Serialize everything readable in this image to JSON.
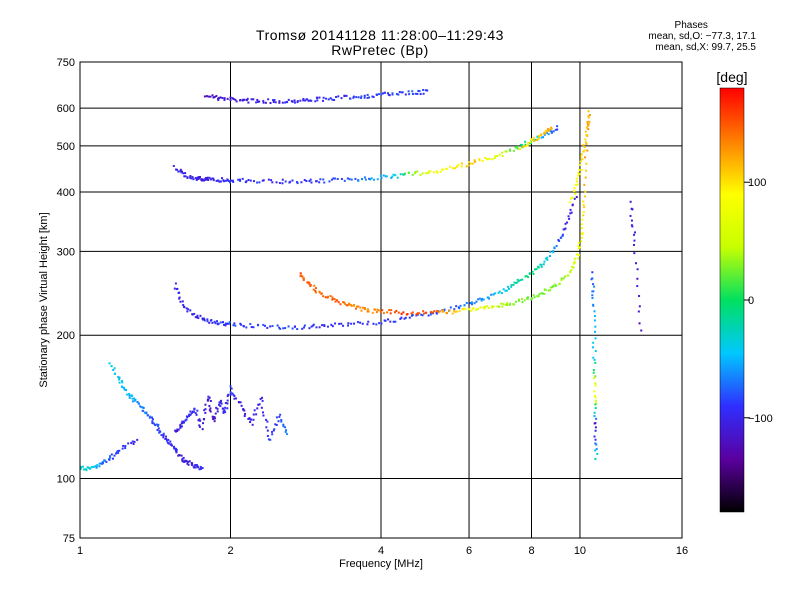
{
  "header": {
    "title_line1": "Tromsø 20141128 11:28:00–11:29:43",
    "title_line2": "RwPretec (Bp)"
  },
  "stats": {
    "heading": "Phases",
    "line_o": "mean, sd,O: −77.3, 17.1",
    "line_x": "mean, sd,X:  99.7, 25.5"
  },
  "colorbar": {
    "label": "[deg]",
    "ticks": [
      "100",
      "0",
      "−100"
    ],
    "tick_values": [
      100,
      0,
      -100
    ],
    "range": [
      -180,
      180
    ],
    "colors": [
      "#000000",
      "#5a00a0",
      "#2f2fff",
      "#00c8ff",
      "#00e060",
      "#c8ff00",
      "#ffff00",
      "#ff8000",
      "#ff0000"
    ]
  },
  "chart_data": {
    "type": "scatter",
    "xlabel": "Frequency [MHz]",
    "ylabel": "Stationary phase Virtual Height [km]",
    "x_scale": "log",
    "y_scale": "log",
    "xlim": [
      1,
      16
    ],
    "ylim": [
      75,
      750
    ],
    "x_ticks": [
      1,
      2,
      4,
      6,
      8,
      10,
      16
    ],
    "x_tick_labels": [
      "1",
      "2",
      "4",
      "6",
      "8",
      "10",
      "16"
    ],
    "y_ticks": [
      75,
      100,
      200,
      300,
      400,
      500,
      600,
      750
    ],
    "y_tick_labels": [
      "75",
      "100",
      "200",
      "300",
      "400",
      "500",
      "600",
      "750"
    ],
    "grid": true,
    "color_value": "phase (deg)",
    "series": [
      {
        "x": [
          1.79,
          1.9,
          2.05,
          2.2,
          2.4,
          2.6,
          2.8,
          3.0,
          3.3,
          3.6,
          3.9,
          4.2,
          4.6,
          4.95
        ],
        "y": [
          640,
          628,
          625,
          622,
          620,
          621,
          623,
          626,
          630,
          634,
          638,
          642,
          646,
          650
        ],
        "phase": [
          -120,
          -115,
          -110,
          -105,
          -100,
          -100,
          -98,
          -95,
          -92,
          -90,
          -88,
          -86,
          -85,
          -84
        ]
      },
      {
        "x": [
          1.55,
          1.62,
          1.7,
          1.75,
          1.8,
          1.9,
          2.0,
          2.2,
          2.5,
          2.8,
          3.1,
          3.5,
          3.9,
          4.3,
          4.7,
          5.2,
          5.7,
          6.2,
          6.8,
          7.4,
          8.0,
          8.6,
          9.0
        ],
        "y": [
          450,
          435,
          428,
          425,
          425,
          424,
          423,
          422,
          421,
          421,
          422,
          425,
          428,
          432,
          437,
          443,
          452,
          462,
          475,
          492,
          512,
          530,
          545
        ],
        "phase": [
          -100,
          -95,
          -105,
          -110,
          -100,
          -95,
          -90,
          -92,
          -95,
          -90,
          -85,
          -80,
          -60,
          -40,
          40,
          80,
          100,
          110,
          60,
          20,
          -20,
          -60,
          -80
        ]
      },
      {
        "x": [
          7.6,
          8.0,
          8.4,
          8.8
        ],
        "y": [
          495,
          510,
          528,
          545
        ],
        "phase": [
          90,
          100,
          110,
          120
        ]
      },
      {
        "x": [
          1.55,
          1.6,
          1.7,
          1.8,
          1.9,
          2.0,
          2.2,
          2.5,
          2.8,
          3.1,
          3.5,
          4.0,
          4.5,
          5.0,
          5.5,
          6.0,
          6.5,
          7.0,
          7.5,
          8.0,
          8.5,
          9.0,
          9.4,
          9.8
        ],
        "y": [
          255,
          232,
          220,
          214,
          212,
          211,
          209,
          208,
          208,
          209,
          211,
          213,
          217,
          222,
          227,
          233,
          240,
          248,
          258,
          270,
          285,
          310,
          340,
          390
        ],
        "phase": [
          -95,
          -100,
          -100,
          -95,
          -90,
          -88,
          -85,
          -88,
          -90,
          -92,
          -95,
          -90,
          -88,
          -85,
          -80,
          -70,
          -60,
          -40,
          -20,
          -10,
          -30,
          -70,
          -100,
          -110
        ]
      },
      {
        "x": [
          2.75,
          2.85,
          3.0,
          3.2,
          3.4,
          3.6,
          3.8,
          4.1,
          4.5,
          5.0,
          5.5,
          6.0,
          6.5,
          7.0,
          7.5,
          8.0,
          8.5,
          9.0,
          9.5,
          9.9,
          10.1,
          10.25,
          10.35
        ],
        "y": [
          270,
          258,
          247,
          238,
          232,
          228,
          225,
          224,
          223,
          223,
          224,
          226,
          228,
          231,
          235,
          240,
          247,
          256,
          270,
          295,
          330,
          400,
          560
        ],
        "phase": [
          150,
          145,
          145,
          150,
          140,
          135,
          130,
          145,
          160,
          150,
          120,
          80,
          60,
          40,
          30,
          25,
          20,
          30,
          40,
          70,
          90,
          110,
          130
        ]
      },
      {
        "x": [
          9.6,
          9.9,
          10.1,
          10.3,
          10.45
        ],
        "y": [
          380,
          420,
          470,
          530,
          590
        ],
        "phase": [
          80,
          90,
          100,
          110,
          120
        ]
      },
      {
        "x": [
          1.15,
          1.2,
          1.25,
          1.3,
          1.35,
          1.4,
          1.45,
          1.5,
          1.55,
          1.6,
          1.65,
          1.7,
          1.75
        ],
        "y": [
          175,
          160,
          150,
          145,
          138,
          132,
          125,
          120,
          115,
          110,
          108,
          106,
          105
        ],
        "phase": [
          -40,
          -45,
          -50,
          -60,
          -70,
          -80,
          -90,
          -95,
          -100,
          -105,
          -110,
          -100,
          -95
        ]
      },
      {
        "x": [
          1.0,
          1.05,
          1.1,
          1.15,
          1.2,
          1.3
        ],
        "y": [
          105,
          105,
          107,
          110,
          115,
          120
        ],
        "phase": [
          -30,
          -35,
          -60,
          -80,
          -90,
          -100
        ]
      },
      {
        "x": [
          1.55,
          1.6,
          1.65,
          1.7,
          1.75,
          1.8,
          1.85,
          1.9,
          1.95,
          2.0,
          2.1,
          2.2,
          2.3,
          2.4,
          2.5,
          2.6
        ],
        "y": [
          125,
          130,
          135,
          140,
          128,
          150,
          132,
          145,
          138,
          155,
          142,
          130,
          148,
          120,
          135,
          125
        ],
        "phase": [
          -110,
          -100,
          -95,
          -90,
          -115,
          -105,
          -120,
          -100,
          -95,
          -90,
          -110,
          -105,
          -100,
          -95,
          -90,
          -60
        ]
      },
      {
        "x": [
          10.6,
          10.65,
          10.7,
          10.72,
          10.75,
          10.8
        ],
        "y": [
          270,
          230,
          180,
          150,
          130,
          110
        ],
        "phase": [
          -80,
          -60,
          -40,
          100,
          -120,
          -30
        ]
      },
      {
        "x": [
          12.6,
          12.9,
          13.2
        ],
        "y": [
          380,
          310,
          205
        ],
        "phase": [
          -110,
          -100,
          -120
        ]
      }
    ]
  }
}
